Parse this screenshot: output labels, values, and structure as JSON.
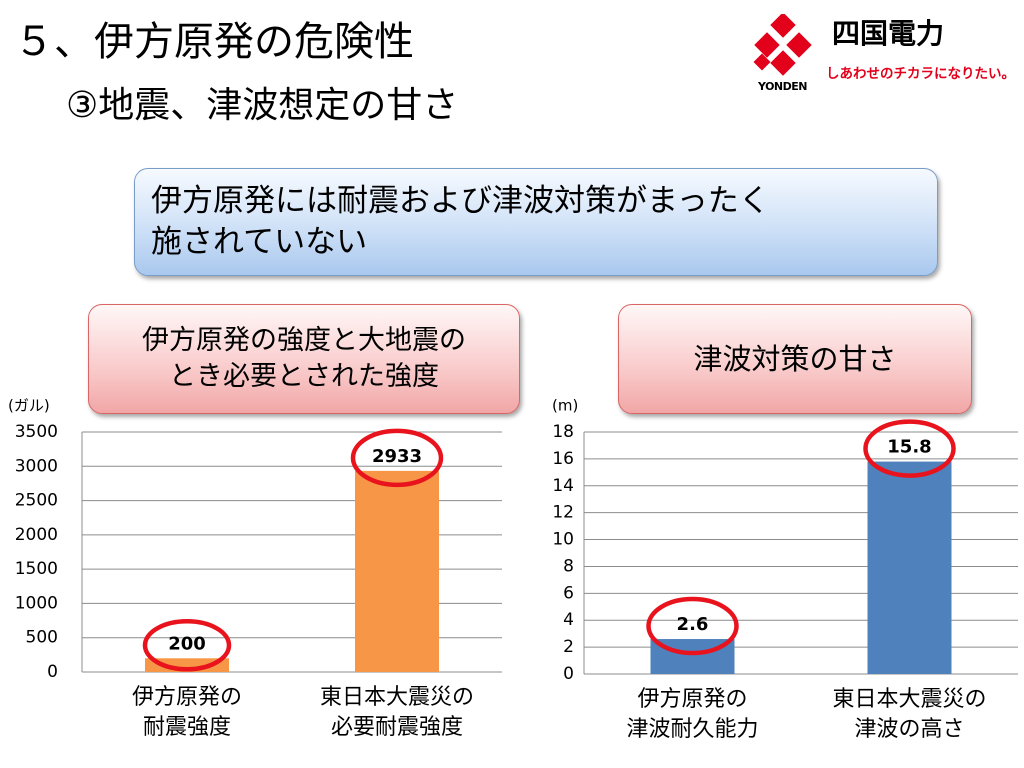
{
  "header": {
    "title": "５、伊方原発の危険性",
    "subtitle": "③地震、津波想定の甘さ"
  },
  "logo": {
    "name": "四国電力",
    "tagline": "しあわせのチカラになりたい。",
    "brand": "YONDEN",
    "icon": "yonden-cross-logo-icon",
    "color": "#e2001a"
  },
  "banner": {
    "line1": "伊方原発には耐震および津波対策がまったく",
    "line2": "施されていない"
  },
  "left_box": {
    "line1": "伊方原発の強度と大地震の",
    "line2": "とき必要とされた強度"
  },
  "right_box": {
    "text": "津波対策の甘さ"
  },
  "highlight_color": "#e8131d",
  "chart_data": [
    {
      "type": "bar",
      "ylabel": "(ガル)",
      "categories": [
        [
          "伊方原発の",
          "耐震強度"
        ],
        [
          "東日本大震災の",
          "必要耐震強度"
        ]
      ],
      "values": [
        200,
        2933
      ],
      "data_labels": [
        "200",
        "2933"
      ],
      "ylim": [
        0,
        3500
      ],
      "yticks": [
        0,
        500,
        1000,
        1500,
        2000,
        2500,
        3000,
        3500
      ],
      "grid": true,
      "bar_color": "#f79646",
      "highlighted_labels": true
    },
    {
      "type": "bar",
      "ylabel": "(m)",
      "categories": [
        [
          "伊方原発の",
          "津波耐久能力"
        ],
        [
          "東日本大震災の",
          "津波の高さ"
        ]
      ],
      "values": [
        2.6,
        15.8
      ],
      "data_labels": [
        "2.6",
        "15.8"
      ],
      "ylim": [
        0,
        18
      ],
      "yticks": [
        0,
        2,
        4,
        6,
        8,
        10,
        12,
        14,
        16,
        18
      ],
      "grid": true,
      "bar_color": "#4f81bd",
      "highlighted_labels": true
    }
  ]
}
